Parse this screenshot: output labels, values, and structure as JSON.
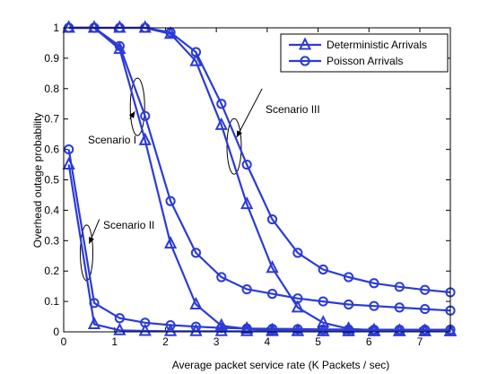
{
  "chart_data": {
    "type": "line",
    "title": "",
    "xlabel": "Average packet service rate (K Packets / sec)",
    "ylabel": "Overhead outage probability",
    "xlim": [
      0,
      7.6
    ],
    "ylim": [
      0,
      1
    ],
    "xticks": [
      0,
      1,
      2,
      3,
      4,
      5,
      6,
      7
    ],
    "yticks": [
      0,
      0.1,
      0.2,
      0.3,
      0.4,
      0.5,
      0.6,
      0.7,
      0.8,
      0.9,
      1
    ],
    "xtick_labels": [
      "0",
      "1",
      "2",
      "3",
      "4",
      "5",
      "6",
      "7"
    ],
    "ytick_labels": [
      "0",
      "0.1",
      "0.2",
      "0.3",
      "0.4",
      "0.5",
      "0.6",
      "0.7",
      "0.8",
      "0.9",
      "1"
    ],
    "grid": false,
    "legend_position": "top-right",
    "line_color": "#2b3bd8",
    "legend": [
      {
        "label": "Deterministic Arrivals",
        "marker": "triangle"
      },
      {
        "label": "Poisson Arrivals",
        "marker": "circle"
      }
    ],
    "series": [
      {
        "scenario": "Scenario I",
        "marker": "triangle",
        "x": [
          0.1,
          0.6,
          1.1,
          1.6,
          2.1,
          2.6,
          3.1,
          3.6,
          4.1,
          4.6,
          5.1,
          5.6,
          6.1,
          6.6,
          7.1,
          7.6
        ],
        "y": [
          1.0,
          1.0,
          0.93,
          0.63,
          0.29,
          0.09,
          0.02,
          0.01,
          0.005,
          0.003,
          0.002,
          0.002,
          0.002,
          0.002,
          0.002,
          0.002
        ]
      },
      {
        "scenario": "Scenario I",
        "marker": "circle",
        "x": [
          0.1,
          0.6,
          1.1,
          1.6,
          2.1,
          2.6,
          3.1,
          3.6,
          4.1,
          4.6,
          5.1,
          5.6,
          6.1,
          6.6,
          7.1,
          7.6
        ],
        "y": [
          1.0,
          1.0,
          0.94,
          0.71,
          0.43,
          0.26,
          0.18,
          0.14,
          0.125,
          0.11,
          0.1,
          0.09,
          0.085,
          0.08,
          0.075,
          0.07
        ]
      },
      {
        "scenario": "Scenario II",
        "marker": "triangle",
        "x": [
          0.1,
          0.6,
          1.1,
          1.6,
          2.1,
          2.6,
          3.1,
          3.6,
          4.1,
          4.6,
          5.1,
          5.6,
          6.1,
          6.6,
          7.1,
          7.6
        ],
        "y": [
          0.55,
          0.025,
          0.005,
          0.003,
          0.002,
          0.002,
          0.002,
          0.002,
          0.002,
          0.002,
          0.002,
          0.002,
          0.002,
          0.002,
          0.002,
          0.002
        ]
      },
      {
        "scenario": "Scenario II",
        "marker": "circle",
        "x": [
          0.1,
          0.6,
          1.1,
          1.6,
          2.1,
          2.6,
          3.1,
          3.6,
          4.1,
          4.6,
          5.1,
          5.6,
          6.1,
          6.6,
          7.1,
          7.6
        ],
        "y": [
          0.6,
          0.095,
          0.045,
          0.03,
          0.022,
          0.017,
          0.013,
          0.011,
          0.01,
          0.009,
          0.008,
          0.008,
          0.007,
          0.007,
          0.007,
          0.007
        ]
      },
      {
        "scenario": "Scenario III",
        "marker": "triangle",
        "x": [
          0.1,
          0.6,
          1.1,
          1.6,
          2.1,
          2.6,
          3.1,
          3.6,
          4.1,
          4.6,
          5.1,
          5.6,
          6.1,
          6.6,
          7.1,
          7.6
        ],
        "y": [
          1.0,
          1.0,
          1.0,
          1.0,
          0.98,
          0.89,
          0.68,
          0.42,
          0.21,
          0.08,
          0.03,
          0.01,
          0.005,
          0.003,
          0.002,
          0.002
        ]
      },
      {
        "scenario": "Scenario III",
        "marker": "circle",
        "x": [
          0.1,
          0.6,
          1.1,
          1.6,
          2.1,
          2.6,
          3.1,
          3.6,
          4.1,
          4.6,
          5.1,
          5.6,
          6.1,
          6.6,
          7.1,
          7.6
        ],
        "y": [
          1.0,
          1.0,
          1.0,
          1.0,
          0.985,
          0.92,
          0.75,
          0.55,
          0.37,
          0.26,
          0.205,
          0.18,
          0.16,
          0.148,
          0.138,
          0.13
        ]
      }
    ],
    "annotations": [
      {
        "text": "Scenario I",
        "ellipse_center": [
          1.45,
          0.74
        ],
        "arrow_from": [
          1.3,
          0.7
        ]
      },
      {
        "text": "Scenario II",
        "ellipse_center": [
          0.45,
          0.26
        ],
        "arrow_from": [
          0.7,
          0.37
        ]
      },
      {
        "text": "Scenario III",
        "ellipse_center": [
          3.35,
          0.61
        ],
        "arrow_from": [
          3.9,
          0.8
        ]
      }
    ]
  }
}
